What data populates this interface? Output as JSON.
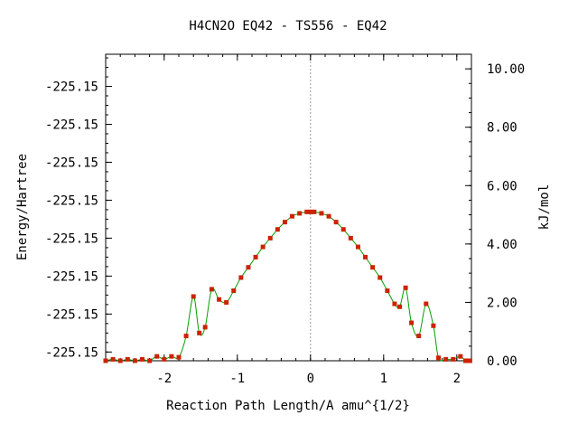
{
  "chart_data": {
    "type": "line",
    "title": "H4CN2O   EQ42 - TS556 - EQ42",
    "xlabel": "Reaction Path Length/A amu^{1/2}",
    "ylabel": "Energy/Hartree",
    "y2label": "kJ/mol",
    "xlim": [
      -2.8,
      2.2
    ],
    "y2lim": [
      0.0,
      10.5
    ],
    "x_ticks": [
      "-2",
      "-1",
      "0",
      "1",
      "2"
    ],
    "x_tick_values": [
      -2,
      -1,
      0,
      1,
      2
    ],
    "y_ticks": [
      "-225.15",
      "-225.15",
      "-225.15",
      "-225.15",
      "-225.15",
      "-225.15",
      "-225.15",
      "-225.15"
    ],
    "y_tick_values": [
      0.3,
      1.6,
      2.9,
      4.2,
      5.5,
      6.8,
      8.1,
      9.4
    ],
    "y2_ticks": [
      "0.00",
      "2.00",
      "4.00",
      "6.00",
      "8.00",
      "10.00"
    ],
    "y2_tick_values": [
      0,
      2,
      4,
      6,
      8,
      10
    ],
    "ts_x": 0.0,
    "line_color": "#00a000",
    "marker_color": "#cc2200",
    "vline_color": "#999999",
    "series": [
      {
        "x": [
          -2.8,
          -2.7,
          -2.6,
          -2.5,
          -2.4,
          -2.3,
          -2.2,
          -2.1,
          -2.0,
          -1.9,
          -1.8,
          -1.7,
          -1.6,
          -1.52,
          -1.44,
          -1.35,
          -1.25,
          -1.15,
          -1.05,
          -0.95,
          -0.85,
          -0.75,
          -0.65,
          -0.55,
          -0.45,
          -0.35,
          -0.25,
          -0.15,
          -0.05,
          0.0,
          0.05,
          0.15,
          0.25,
          0.35,
          0.45,
          0.55,
          0.65,
          0.75,
          0.85,
          0.95,
          1.05,
          1.15,
          1.22,
          1.3,
          1.38,
          1.48,
          1.58,
          1.68,
          1.75,
          1.85,
          1.95,
          2.05,
          2.12,
          2.18
        ],
        "y": [
          0.0,
          0.05,
          0.0,
          0.05,
          0.0,
          0.05,
          0.0,
          0.15,
          0.05,
          0.15,
          0.12,
          0.85,
          2.2,
          0.95,
          1.15,
          2.45,
          2.1,
          2.0,
          2.4,
          2.85,
          3.2,
          3.55,
          3.9,
          4.2,
          4.5,
          4.75,
          4.95,
          5.05,
          5.1,
          5.1,
          5.1,
          5.05,
          4.95,
          4.75,
          4.5,
          4.2,
          3.9,
          3.55,
          3.2,
          2.85,
          2.4,
          1.95,
          1.85,
          2.5,
          1.3,
          0.85,
          1.95,
          1.2,
          0.1,
          0.05,
          0.05,
          0.15,
          0.0,
          0.0
        ]
      }
    ]
  }
}
